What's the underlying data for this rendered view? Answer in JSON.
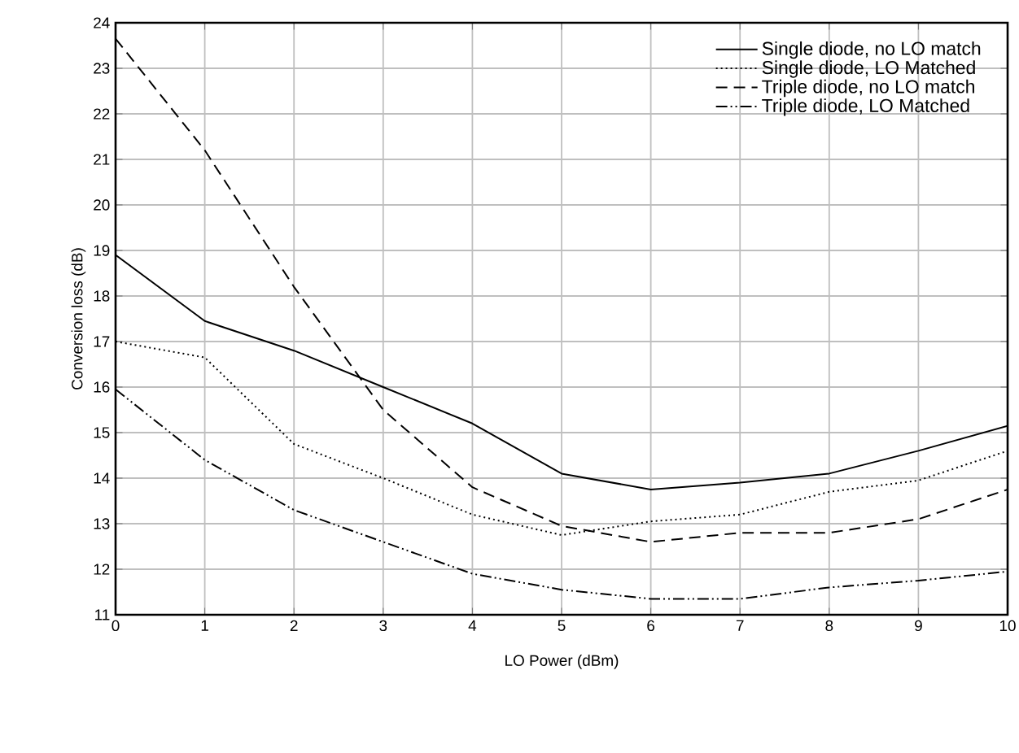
{
  "chart_data": {
    "type": "line",
    "xlabel": "LO Power (dBm)",
    "ylabel": "Conversion loss (dB)",
    "x": [
      0,
      1,
      2,
      3,
      4,
      5,
      6,
      7,
      8,
      9,
      10
    ],
    "series": [
      {
        "name": "Single diode, no LO match",
        "color": "#000000",
        "line_style": "solid",
        "values": [
          18.9,
          17.45,
          16.8,
          16.0,
          15.2,
          14.1,
          13.75,
          13.9,
          14.1,
          14.6,
          15.15
        ]
      },
      {
        "name": "Single diode, LO Matched",
        "color": "#000000",
        "line_style": "dotted",
        "values": [
          17.0,
          16.65,
          14.75,
          14.0,
          13.2,
          12.75,
          13.05,
          13.2,
          13.7,
          13.95,
          14.6
        ]
      },
      {
        "name": "Triple diode, no LO match",
        "color": "#000000",
        "line_style": "dashed",
        "values": [
          23.65,
          21.2,
          18.2,
          15.5,
          13.8,
          12.95,
          12.6,
          12.8,
          12.8,
          13.1,
          13.75
        ]
      },
      {
        "name": "Triple diode, LO Matched",
        "color": "#000000",
        "line_style": "dashdotdotted",
        "values": [
          15.95,
          14.4,
          13.3,
          12.6,
          11.9,
          11.55,
          11.35,
          11.35,
          11.6,
          11.75,
          11.95
        ]
      }
    ],
    "xlim": [
      0,
      10
    ],
    "ylim": [
      11,
      24
    ],
    "xticks": [
      0,
      1,
      2,
      3,
      4,
      5,
      6,
      7,
      8,
      9,
      10
    ],
    "yticks": [
      11,
      12,
      13,
      14,
      15,
      16,
      17,
      18,
      19,
      20,
      21,
      22,
      23,
      24
    ],
    "grid": true,
    "legend": "top right",
    "marker": "none"
  }
}
